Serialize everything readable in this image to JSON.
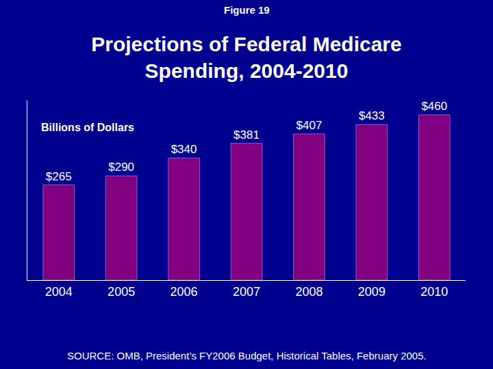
{
  "chart_data": {
    "type": "bar",
    "title": "Projections of Federal Medicare Spending, 2004-2010",
    "annotations": [
      "Figure 19",
      "Billions of Dollars",
      "SOURCE: OMB, President’s FY2006 Budget, Historical Tables, February 2005."
    ],
    "categories": [
      "2004",
      "2005",
      "2006",
      "2007",
      "2008",
      "2009",
      "2010"
    ],
    "values": [
      265,
      290,
      340,
      381,
      407,
      433,
      460
    ],
    "value_labels": [
      "$265",
      "$290",
      "$340",
      "$381",
      "$407",
      "$433",
      "$460"
    ],
    "color": "#800080",
    "ylim": [
      0,
      500
    ],
    "yticks": [],
    "grid": false,
    "data_labels": true,
    "tick_labels": "x"
  }
}
